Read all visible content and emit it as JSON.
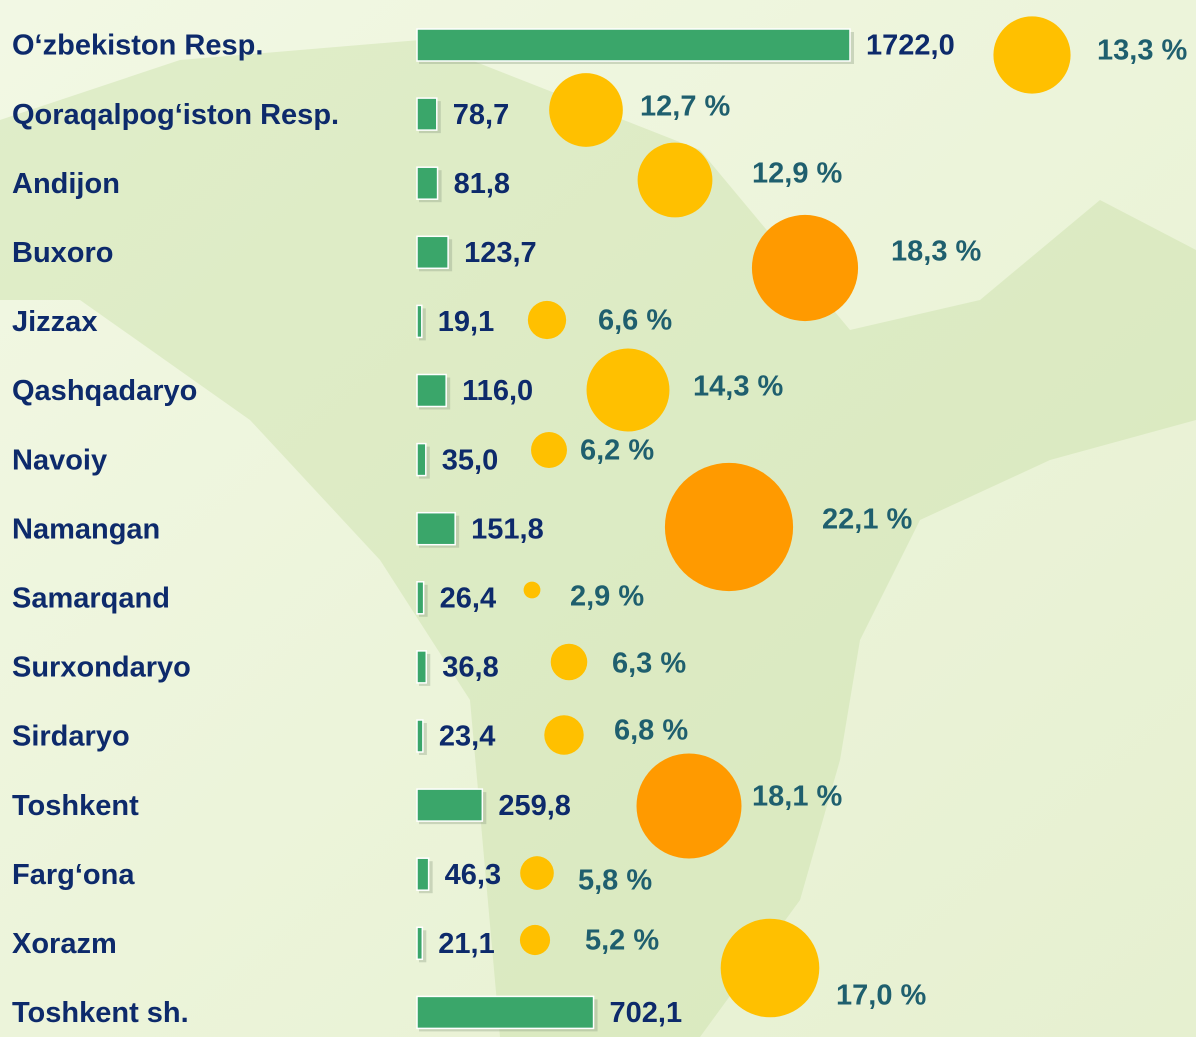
{
  "chart_data": {
    "type": "bar-bubble",
    "categories": [
      "O‘zbekiston Resp.",
      "Qoraqalpog‘iston Resp.",
      "Andijon",
      "Buxoro",
      "Jizzax",
      "Qashqadaryo",
      "Navoiy",
      "Namangan",
      "Samarqand",
      "Surxondaryo",
      "Sirdaryo",
      "Toshkent",
      "Farg‘ona",
      "Xorazm",
      "Toshkent sh."
    ],
    "xlim": [
      0,
      1722
    ],
    "series": [
      {
        "color": "#3aa66a",
        "values": [
          1722.0,
          78.7,
          81.8,
          123.7,
          19.1,
          116.0,
          35.0,
          151.8,
          26.4,
          36.8,
          23.4,
          259.8,
          46.3,
          21.1,
          702.1
        ],
        "value_labels": [
          "1722,0",
          "78,7",
          "81,8",
          "123,7",
          "19,1",
          "116,0",
          "35,0",
          "151,8",
          "26,4",
          "36,8",
          "23,4",
          "259,8",
          "46,3",
          "21,1",
          "702,1"
        ]
      },
      {
        "colors": [
          "#ffc000",
          "#ffc000",
          "#ffc000",
          "#ff9a00",
          "#ffc000",
          "#ffc000",
          "#ffc000",
          "#ff9a00",
          "#ffc000",
          "#ffc000",
          "#ffc000",
          "#ff9a00",
          "#ffc000",
          "#ffc000",
          "#ffc000"
        ],
        "values": [
          13.3,
          12.7,
          12.9,
          18.3,
          6.6,
          14.3,
          6.2,
          22.1,
          2.9,
          6.3,
          6.8,
          18.1,
          5.8,
          5.2,
          17.0
        ],
        "value_labels": [
          "13,3 %",
          "12,7 %",
          "12,9 %",
          "18,3 %",
          "6,6 %",
          "14,3 %",
          "6,2 %",
          "22,1 %",
          "2,9 %",
          "6,3 %",
          "6,8 %",
          "18,1 %",
          "5,8 %",
          "5,2 %",
          "17,0 %"
        ]
      }
    ]
  }
}
